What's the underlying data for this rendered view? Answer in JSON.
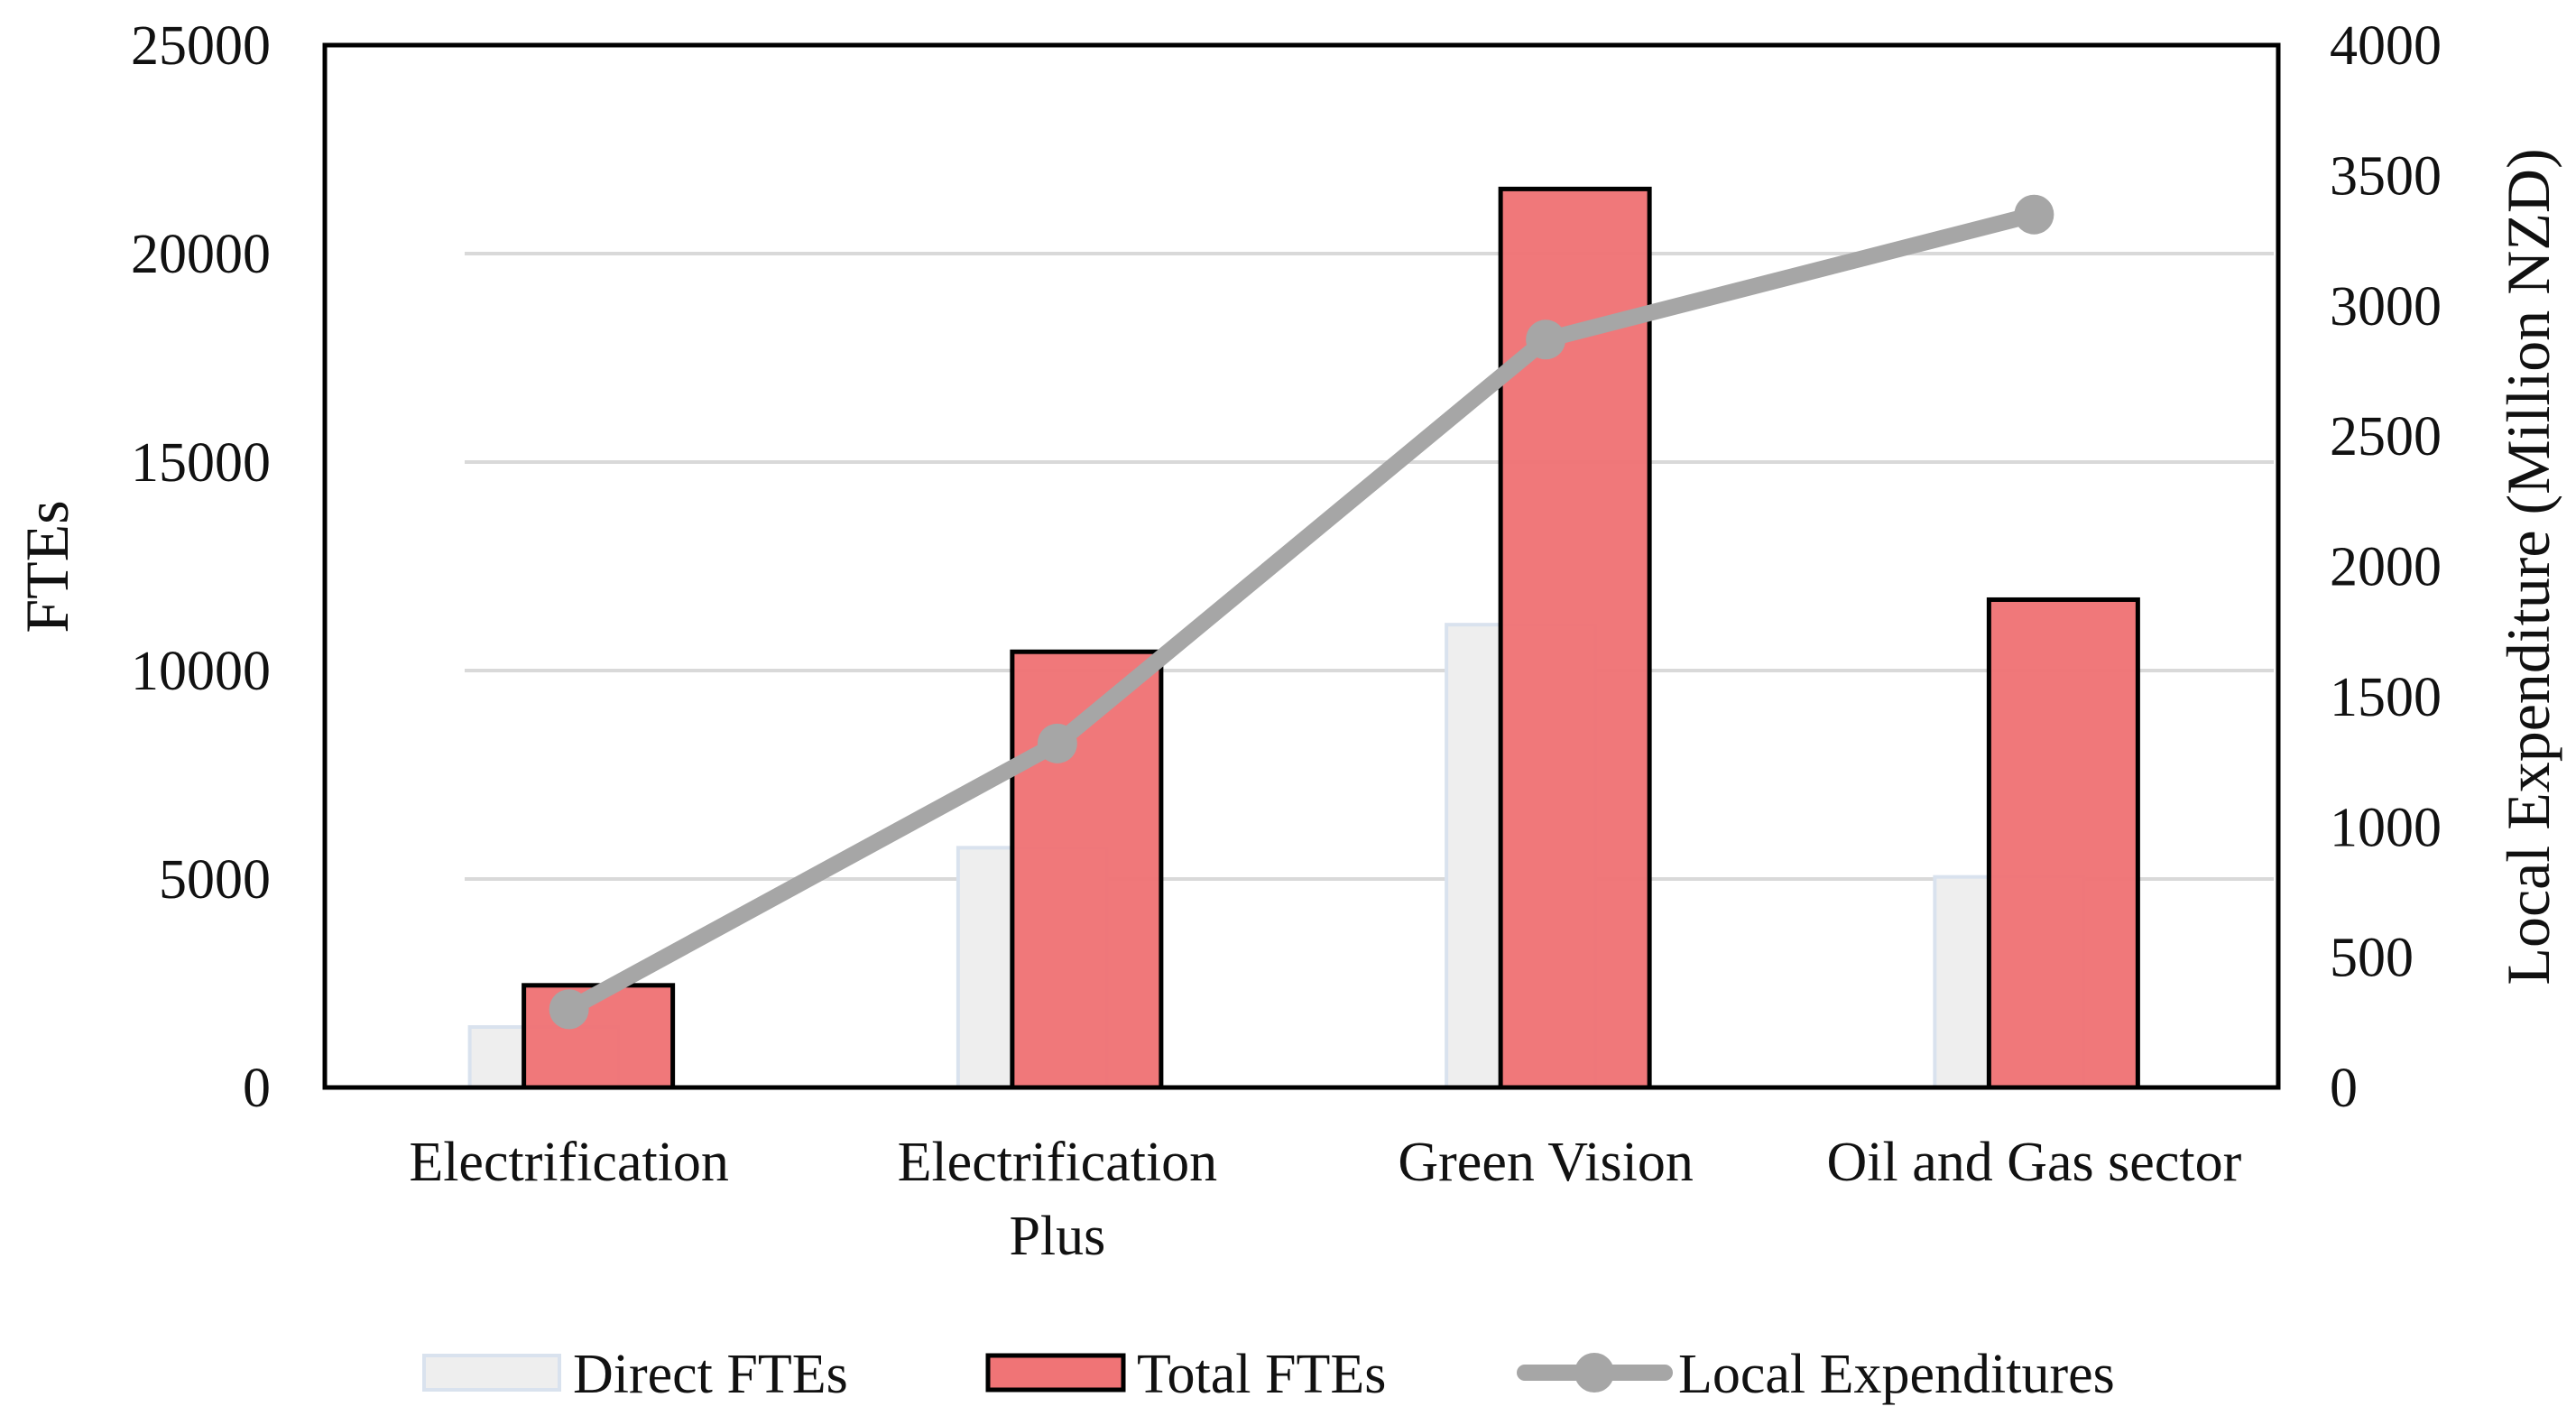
{
  "chart_data": {
    "type": "bar",
    "title": "",
    "categories": [
      "Electrification",
      "Electrification Plus",
      "Green Vision",
      "Oil and Gas sector"
    ],
    "category_lines": [
      [
        "Electrification"
      ],
      [
        "Electrification",
        "Plus"
      ],
      [
        "Green Vision"
      ],
      [
        "Oil and Gas sector"
      ]
    ],
    "series": [
      {
        "name": "Direct FTEs",
        "kind": "bar",
        "axis": "left",
        "values": [
          1450,
          5750,
          11100,
          5050
        ],
        "color": "#eeeeee",
        "edge": "#d9e2ee"
      },
      {
        "name": "Total FTEs",
        "kind": "bar",
        "axis": "left",
        "values": [
          2450,
          10450,
          21550,
          11700
        ],
        "color": "#f07476",
        "edge": "#000000"
      },
      {
        "name": "Local Expenditures",
        "kind": "line",
        "axis": "right",
        "values": [
          300,
          1320,
          2870,
          3350
        ],
        "color": "#a6a6a6"
      }
    ],
    "ylabel": "FTEs",
    "y2label": "Local Expenditure (Million NZD)",
    "ylim": [
      0,
      25000
    ],
    "yticks": [
      "0",
      "5000",
      "10000",
      "15000",
      "20000",
      "25000"
    ],
    "y2lim": [
      0,
      4000
    ],
    "y2ticks": [
      "0",
      "500",
      "1000",
      "1500",
      "2000",
      "2500",
      "3000",
      "3500",
      "4000"
    ],
    "grid": true,
    "legend": "bottom"
  }
}
